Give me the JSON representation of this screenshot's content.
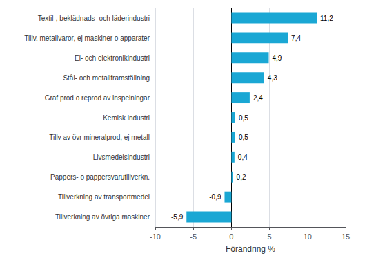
{
  "chart_data": {
    "type": "bar",
    "orientation": "horizontal",
    "categories": [
      "Tillverkning av övriga maskiner",
      "Tillverkning av transportmedel",
      "Pappers- o pappersvarutillverkn.",
      "Livsmedelsindustri",
      "Tillv av övr mineralprod, ej metall",
      "Kemisk industri",
      "Graf prod o reprod av inspelningar",
      "Stål- och metallframställning",
      "El- och elektronikindustri",
      "Tillv. metallvaror, ej maskiner o apparater",
      "Textil-, beklädnads- och läderindustri"
    ],
    "values": [
      -5.9,
      -0.9,
      0.2,
      0.4,
      0.5,
      0.5,
      2.4,
      4.3,
      4.9,
      7.4,
      11.2
    ],
    "value_labels": [
      "-5,9",
      "-0,9",
      "0,2",
      "0,4",
      "0,5",
      "0,5",
      "2,4",
      "4,3",
      "4,9",
      "7,4",
      "11,2"
    ],
    "data_labels": true,
    "color": "#1aa7d4",
    "xlabel": "Förändring %",
    "xlim": [
      -10,
      15
    ],
    "xticks": [
      -10,
      -5,
      0,
      5,
      10,
      15
    ],
    "grid": true
  }
}
